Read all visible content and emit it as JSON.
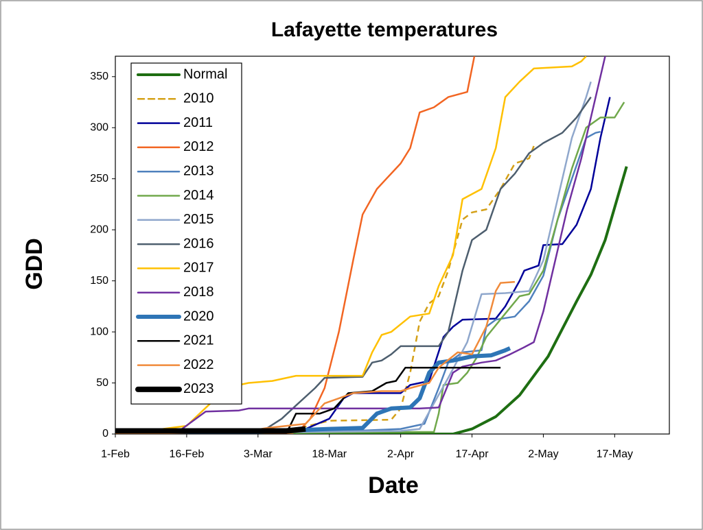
{
  "chart_data": {
    "type": "line",
    "title": "Lafayette temperatures",
    "x_label": "Date",
    "y_label": "GDD",
    "xlim": [
      0,
      116.5
    ],
    "ylim": [
      0,
      370
    ],
    "xticks": [
      {
        "value": 0,
        "label": "1-Feb"
      },
      {
        "value": 15,
        "label": "16-Feb"
      },
      {
        "value": 30,
        "label": "3-Mar"
      },
      {
        "value": 45,
        "label": "18-Mar"
      },
      {
        "value": 60,
        "label": "2-Apr"
      },
      {
        "value": 75,
        "label": "17-Apr"
      },
      {
        "value": 90,
        "label": "2-May"
      },
      {
        "value": 105,
        "label": "17-May"
      }
    ],
    "yticks": [
      0,
      50,
      100,
      150,
      200,
      250,
      300,
      350
    ],
    "legend": "upper left",
    "series": [
      {
        "name": "Normal",
        "color": "#1e6e12",
        "width": 4,
        "dashed": false,
        "x": [
          0,
          71,
          75,
          80,
          85,
          91,
          97,
          100,
          103,
          107.5
        ],
        "values": [
          0,
          0,
          5,
          17,
          38,
          76,
          130,
          156,
          190,
          262
        ]
      },
      {
        "name": "2010",
        "color": "#d4a017",
        "width": 2.5,
        "dashed": true,
        "x": [
          0,
          30,
          38,
          45,
          58,
          60,
          62,
          64,
          66,
          68,
          70,
          73,
          75,
          78,
          81,
          84,
          86,
          87,
          88
        ],
        "values": [
          1,
          2,
          5,
          13,
          14,
          25,
          60,
          110,
          128,
          135,
          160,
          210,
          217,
          220,
          240,
          265,
          268,
          270,
          282
        ]
      },
      {
        "name": "2011",
        "color": "#000099",
        "width": 2.5,
        "dashed": false,
        "x": [
          0,
          30,
          40,
          45,
          48,
          50,
          56,
          60,
          62,
          66,
          69,
          71,
          73,
          80,
          82,
          85,
          86,
          89,
          90,
          94,
          97,
          100,
          102,
          104
        ],
        "values": [
          2,
          2,
          5,
          15,
          35,
          40,
          40,
          40,
          48,
          52,
          95,
          105,
          112,
          113,
          125,
          150,
          160,
          165,
          185,
          186,
          205,
          240,
          290,
          330
        ]
      },
      {
        "name": "2012",
        "color": "#f26522",
        "width": 2.5,
        "dashed": false,
        "x": [
          0,
          37,
          39,
          41,
          44,
          47,
          50,
          52,
          55,
          57,
          60,
          62,
          64,
          67,
          70,
          74,
          75.5
        ],
        "values": [
          0,
          0,
          5,
          15,
          45,
          100,
          170,
          215,
          240,
          250,
          265,
          280,
          315,
          320,
          330,
          335,
          370
        ]
      },
      {
        "name": "2013",
        "color": "#4f81bd",
        "width": 2.5,
        "dashed": false,
        "x": [
          0,
          50,
          60,
          65,
          68,
          70,
          73,
          77,
          78,
          80,
          84,
          87,
          90,
          93,
          96,
          99,
          101,
          102
        ],
        "values": [
          1,
          3,
          5,
          10,
          45,
          70,
          80,
          82,
          105,
          112,
          115,
          130,
          155,
          210,
          250,
          290,
          295,
          296
        ]
      },
      {
        "name": "2014",
        "color": "#70a84b",
        "width": 2.5,
        "dashed": false,
        "x": [
          0,
          60,
          67,
          68,
          69,
          72,
          74,
          76,
          78,
          82,
          85,
          87,
          90,
          93,
          96,
          99,
          102,
          105,
          107
        ],
        "values": [
          0,
          2,
          2,
          20,
          48,
          50,
          60,
          75,
          95,
          118,
          135,
          137,
          160,
          210,
          260,
          300,
          310,
          310,
          325
        ]
      },
      {
        "name": "2015",
        "color": "#8fa7cc",
        "width": 2.5,
        "dashed": false,
        "x": [
          0,
          60,
          64,
          67,
          70,
          74,
          77,
          82,
          87,
          90,
          93,
          96,
          99,
          100
        ],
        "values": [
          0,
          3,
          5,
          30,
          55,
          90,
          137,
          138,
          140,
          170,
          230,
          290,
          330,
          345
        ]
      },
      {
        "name": "2016",
        "color": "#4d5e6e",
        "width": 2.5,
        "dashed": false,
        "x": [
          0,
          30,
          35,
          38,
          42,
          44,
          52,
          54,
          56,
          58,
          60,
          68,
          70,
          73,
          75,
          78,
          81,
          84,
          87,
          90,
          94,
          97,
          100
        ],
        "values": [
          0,
          0,
          15,
          28,
          45,
          55,
          56,
          70,
          72,
          78,
          86,
          86,
          100,
          160,
          190,
          200,
          240,
          255,
          275,
          285,
          295,
          310,
          330
        ]
      },
      {
        "name": "2017",
        "color": "#ffc000",
        "width": 2.5,
        "dashed": false,
        "x": [
          0,
          5,
          10,
          15,
          20,
          22,
          26,
          28,
          33,
          38,
          52,
          54,
          56,
          58,
          62,
          66,
          68,
          71,
          73,
          77,
          80,
          82,
          85,
          88,
          96,
          98,
          99
        ],
        "values": [
          0,
          2,
          5,
          8,
          30,
          45,
          48,
          50,
          52,
          57,
          57,
          80,
          97,
          100,
          115,
          118,
          145,
          175,
          230,
          240,
          280,
          330,
          345,
          358,
          360,
          365,
          370
        ]
      },
      {
        "name": "2018",
        "color": "#7030a0",
        "width": 2.5,
        "dashed": false,
        "x": [
          0,
          14,
          19,
          26,
          28,
          60,
          64,
          68,
          71,
          73,
          77,
          80,
          83,
          86,
          88,
          90,
          92,
          95,
          98,
          100,
          103
        ],
        "values": [
          0,
          5,
          22,
          23,
          25,
          25,
          25,
          26,
          60,
          66,
          70,
          72,
          78,
          85,
          90,
          120,
          160,
          220,
          270,
          310,
          370
        ]
      },
      {
        "name": "2020",
        "color": "#2e75b6",
        "width": 6,
        "dashed": false,
        "x": [
          0,
          30,
          40,
          45,
          52,
          55,
          58,
          62,
          64,
          66,
          68,
          71,
          75,
          79,
          82,
          83
        ],
        "values": [
          2,
          2,
          4,
          5,
          6,
          20,
          25,
          26,
          35,
          60,
          70,
          72,
          76,
          77,
          82,
          84
        ]
      },
      {
        "name": "2021",
        "color": "#000000",
        "width": 2.5,
        "dashed": false,
        "x": [
          0,
          36,
          38,
          43,
          46,
          49,
          54,
          57,
          59,
          61,
          68,
          78,
          81
        ],
        "values": [
          1,
          1,
          20,
          20,
          25,
          40,
          42,
          50,
          52,
          65,
          65,
          65,
          65
        ]
      },
      {
        "name": "2022",
        "color": "#f08a3a",
        "width": 2.5,
        "dashed": false,
        "x": [
          0,
          27,
          32,
          36,
          40,
          44,
          47,
          50,
          56,
          60,
          62,
          66,
          68,
          72,
          75,
          78,
          80,
          81,
          84
        ],
        "values": [
          0,
          2,
          6,
          8,
          10,
          30,
          35,
          40,
          42,
          42,
          45,
          50,
          65,
          80,
          78,
          105,
          140,
          148,
          149
        ]
      },
      {
        "name": "2023",
        "color": "#000000",
        "width": 8,
        "dashed": false,
        "x": [
          0,
          30,
          36,
          40
        ],
        "values": [
          3,
          3,
          3,
          5
        ]
      }
    ]
  }
}
